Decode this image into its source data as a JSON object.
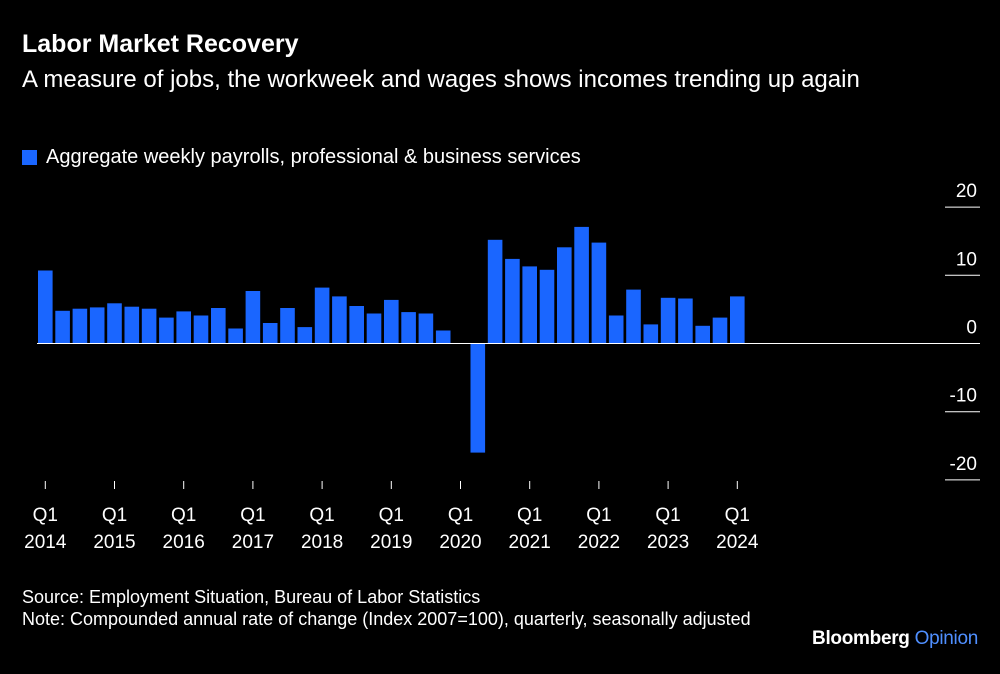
{
  "header": {
    "title": "Labor Market Recovery",
    "subtitle": "A measure of jobs, the workweek and wages shows incomes trending up again"
  },
  "colors": {
    "bar": "#1a66ff",
    "background": "#000000",
    "text": "#ffffff",
    "accent": "#4f8fff"
  },
  "chart_data": {
    "type": "bar",
    "series": [
      {
        "name": "Aggregate weekly payrolls, professional & business services",
        "values": [
          10.7,
          4.8,
          5.1,
          5.3,
          5.9,
          5.4,
          5.1,
          3.8,
          4.7,
          4.1,
          5.2,
          2.2,
          7.7,
          3.0,
          5.2,
          2.4,
          8.2,
          6.9,
          5.5,
          4.4,
          6.4,
          4.6,
          4.4,
          1.9,
          0,
          -16.0,
          15.2,
          12.4,
          11.3,
          10.8,
          14.1,
          17.1,
          14.8,
          4.1,
          7.9,
          2.8,
          6.7,
          6.6,
          2.6,
          3.8,
          6.9
        ],
        "color": "#1a66ff"
      }
    ],
    "x_tick_labels": [
      {
        "quarter": "Q1",
        "year": "2014"
      },
      {
        "quarter": "Q1",
        "year": "2015"
      },
      {
        "quarter": "Q1",
        "year": "2016"
      },
      {
        "quarter": "Q1",
        "year": "2017"
      },
      {
        "quarter": "Q1",
        "year": "2018"
      },
      {
        "quarter": "Q1",
        "year": "2019"
      },
      {
        "quarter": "Q1",
        "year": "2020"
      },
      {
        "quarter": "Q1",
        "year": "2021"
      },
      {
        "quarter": "Q1",
        "year": "2022"
      },
      {
        "quarter": "Q1",
        "year": "2023"
      },
      {
        "quarter": "Q1",
        "year": "2024"
      }
    ],
    "y_ticks": [
      {
        "value": 20,
        "label": "20"
      },
      {
        "value": 10,
        "label": "10"
      },
      {
        "value": 0,
        "label": "0"
      },
      {
        "value": -10,
        "label": "-10"
      },
      {
        "value": -20,
        "label": "-20"
      }
    ],
    "ylim": [
      -20,
      20
    ],
    "x_range": "Q1 2014 to Q1 2024, quarterly",
    "legend": "top-left",
    "grid": false
  },
  "footer": {
    "source": "Source: Employment Situation, Bureau of Labor Statistics",
    "note": "Note: Compounded annual rate of change (Index 2007=100), quarterly, seasonally adjusted"
  },
  "brand": {
    "name": "Bloomberg",
    "section": "Opinion"
  }
}
